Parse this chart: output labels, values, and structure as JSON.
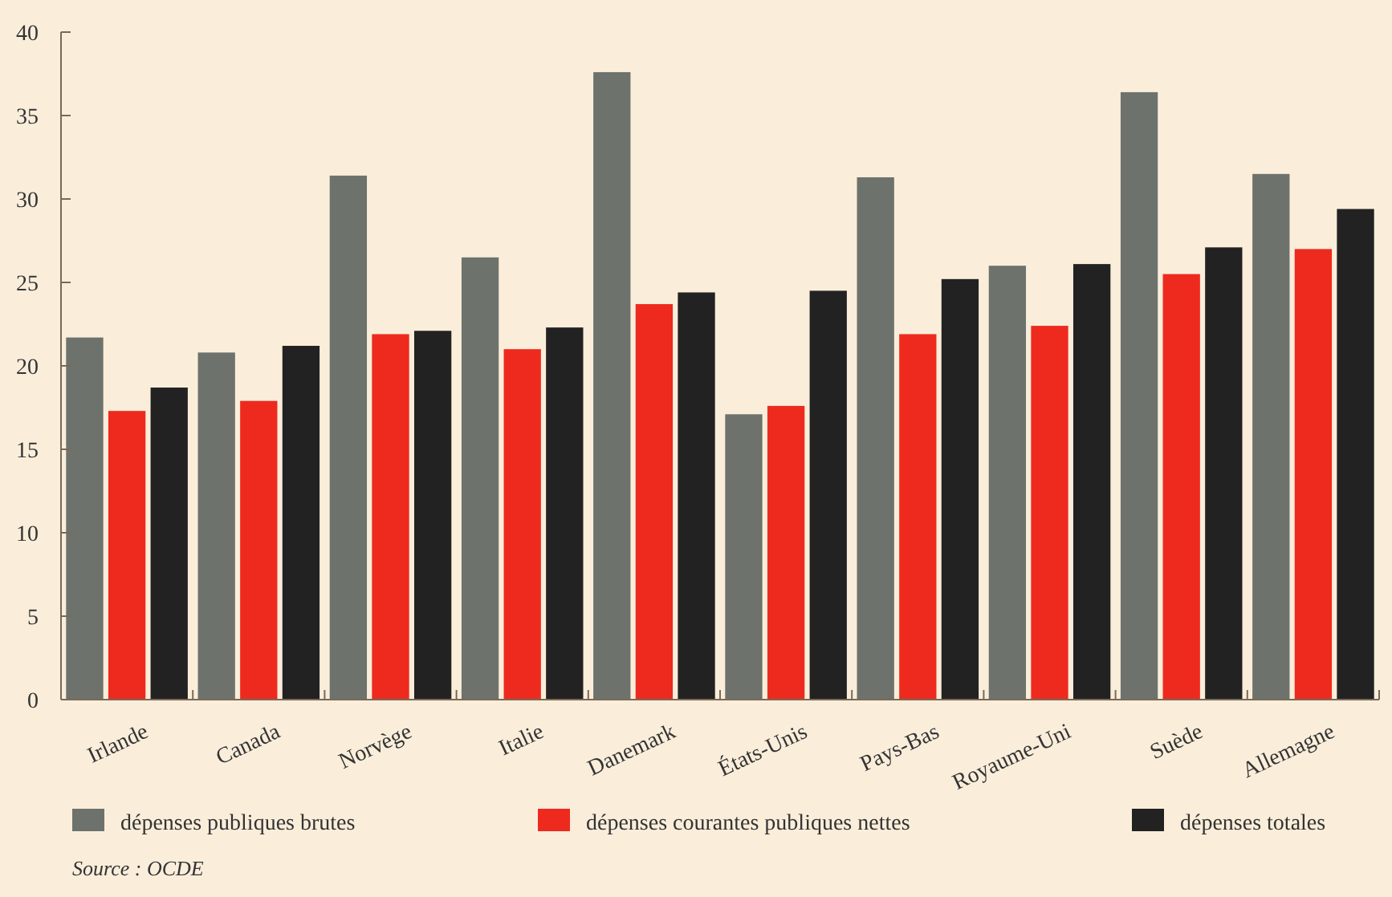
{
  "chart_data": {
    "type": "bar",
    "categories": [
      "Irlande",
      "Canada",
      "Norvège",
      "Italie",
      "Danemark",
      "États-Unis",
      "Pays-Bas",
      "Royaume-Uni",
      "Suède",
      "Allemagne"
    ],
    "series": [
      {
        "name": "dépenses publiques brutes",
        "color": "#6e726c",
        "values": [
          21.7,
          20.8,
          31.4,
          26.5,
          37.6,
          17.1,
          31.3,
          26.0,
          36.4,
          31.5
        ]
      },
      {
        "name": "dépenses courantes publiques nettes",
        "color": "#ee2a1e",
        "values": [
          17.3,
          17.9,
          21.9,
          21.0,
          23.7,
          17.6,
          21.9,
          22.4,
          25.5,
          27.0
        ]
      },
      {
        "name": "dépenses totales",
        "color": "#222222",
        "values": [
          18.7,
          21.2,
          22.1,
          22.3,
          24.4,
          24.5,
          25.2,
          26.1,
          27.1,
          29.4
        ]
      }
    ],
    "ylim": [
      0,
      40
    ],
    "yticks": [
      0,
      5,
      10,
      15,
      20,
      25,
      30,
      35,
      40
    ],
    "grid": false,
    "legend": "bottom",
    "annotations": [
      "Source : OCDE"
    ]
  }
}
